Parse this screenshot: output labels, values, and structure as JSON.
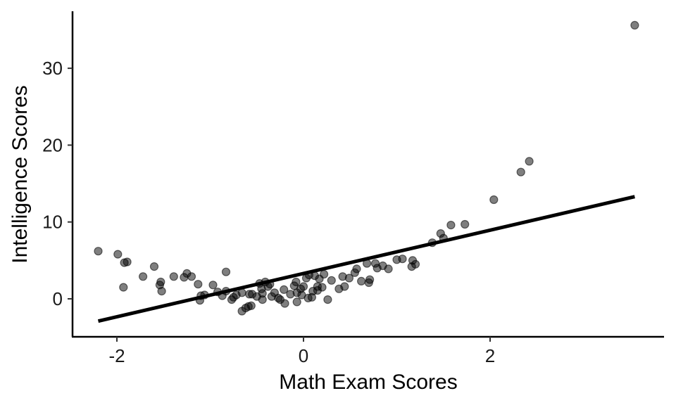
{
  "chart_data": {
    "type": "scatter",
    "title": "",
    "xlabel": "Math Exam Scores",
    "ylabel": "Intelligence Scores",
    "xlim": [
      -2.5,
      3.85
    ],
    "ylim": [
      -4.9,
      37.5
    ],
    "x_ticks": [
      -2,
      0,
      2
    ],
    "y_ticks": [
      0,
      10,
      20,
      30
    ],
    "x_tick_labels": [
      "-2",
      "0",
      "2"
    ],
    "y_tick_labels": [
      "0",
      "10",
      "20",
      "30"
    ],
    "grid": false,
    "legend": null,
    "point_color": "#000000",
    "point_alpha": 0.5,
    "line_color": "#000000",
    "regression_line": {
      "x": [
        -2.2,
        3.55
      ],
      "y": [
        -2.9,
        13.3
      ]
    },
    "points": [
      [
        -2.2,
        6.2
      ],
      [
        -1.99,
        5.8
      ],
      [
        -1.92,
        4.7
      ],
      [
        -1.89,
        4.8
      ],
      [
        -1.93,
        1.5
      ],
      [
        -1.72,
        2.9
      ],
      [
        -1.6,
        4.2
      ],
      [
        -1.53,
        2.2
      ],
      [
        -1.54,
        1.8
      ],
      [
        -1.52,
        1.0
      ],
      [
        -1.39,
        2.9
      ],
      [
        -1.28,
        2.8
      ],
      [
        -1.25,
        3.3
      ],
      [
        -1.2,
        2.9
      ],
      [
        -1.13,
        1.9
      ],
      [
        -1.1,
        0.4
      ],
      [
        -1.11,
        -0.2
      ],
      [
        -1.06,
        0.5
      ],
      [
        -0.97,
        1.8
      ],
      [
        -0.92,
        0.9
      ],
      [
        -0.87,
        0.4
      ],
      [
        -0.83,
        1.0
      ],
      [
        -0.83,
        3.5
      ],
      [
        -0.77,
        -0.1
      ],
      [
        -0.75,
        0.2
      ],
      [
        -0.72,
        0.5
      ],
      [
        -0.66,
        0.8
      ],
      [
        -0.66,
        -1.6
      ],
      [
        -0.62,
        -1.2
      ],
      [
        -0.59,
        -1.0
      ],
      [
        -0.58,
        0.6
      ],
      [
        -0.55,
        0.6
      ],
      [
        -0.56,
        -0.9
      ],
      [
        -0.5,
        0.3
      ],
      [
        -0.47,
        2.0
      ],
      [
        -0.45,
        1.3
      ],
      [
        -0.44,
        0.7
      ],
      [
        -0.44,
        -0.1
      ],
      [
        -0.41,
        2.2
      ],
      [
        -0.38,
        1.6
      ],
      [
        -0.36,
        1.9
      ],
      [
        -0.34,
        0.3
      ],
      [
        -0.31,
        0.8
      ],
      [
        -0.27,
        0.1
      ],
      [
        -0.25,
        -0.1
      ],
      [
        -0.21,
        1.2
      ],
      [
        -0.2,
        -0.6
      ],
      [
        -0.14,
        0.6
      ],
      [
        -0.1,
        1.7
      ],
      [
        -0.08,
        2.2
      ],
      [
        -0.07,
        0.8
      ],
      [
        -0.07,
        -0.4
      ],
      [
        -0.03,
        1.3
      ],
      [
        -0.02,
        0.5
      ],
      [
        0.0,
        1.6
      ],
      [
        0.03,
        2.7
      ],
      [
        0.05,
        0.1
      ],
      [
        0.06,
        3.1
      ],
      [
        0.09,
        0.2
      ],
      [
        0.1,
        1.0
      ],
      [
        0.12,
        3.0
      ],
      [
        0.15,
        1.6
      ],
      [
        0.15,
        1.1
      ],
      [
        0.17,
        2.6
      ],
      [
        0.2,
        1.5
      ],
      [
        0.22,
        3.2
      ],
      [
        0.26,
        -0.1
      ],
      [
        0.3,
        2.4
      ],
      [
        0.38,
        1.3
      ],
      [
        0.42,
        2.9
      ],
      [
        0.44,
        1.6
      ],
      [
        0.49,
        2.7
      ],
      [
        0.55,
        3.4
      ],
      [
        0.57,
        3.9
      ],
      [
        0.62,
        2.3
      ],
      [
        0.68,
        4.6
      ],
      [
        0.7,
        2.1
      ],
      [
        0.71,
        2.5
      ],
      [
        0.77,
        4.6
      ],
      [
        0.79,
        4.0
      ],
      [
        0.85,
        4.3
      ],
      [
        0.91,
        3.9
      ],
      [
        1.0,
        5.1
      ],
      [
        1.06,
        5.2
      ],
      [
        1.16,
        4.2
      ],
      [
        1.17,
        5.0
      ],
      [
        1.2,
        4.5
      ],
      [
        1.38,
        7.3
      ],
      [
        1.47,
        8.5
      ],
      [
        1.5,
        7.9
      ],
      [
        1.58,
        9.6
      ],
      [
        1.73,
        9.7
      ],
      [
        2.04,
        12.9
      ],
      [
        2.33,
        16.5
      ],
      [
        2.42,
        17.9
      ],
      [
        3.55,
        35.6
      ]
    ]
  }
}
